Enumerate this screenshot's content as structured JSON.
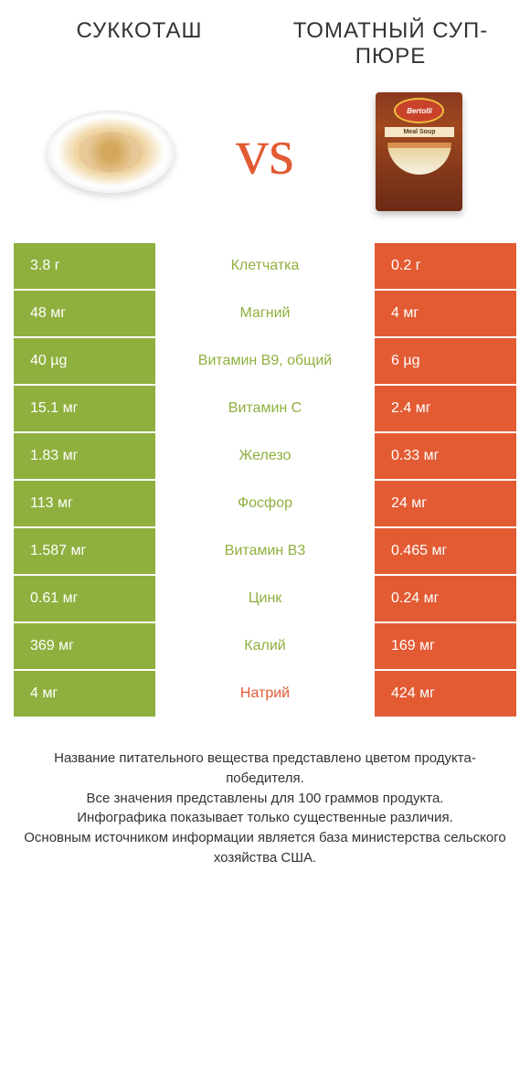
{
  "header": {
    "left_title": "СУККОТАШ",
    "right_title": "ТОМАТНЫЙ СУП-ПЮРЕ",
    "vs": "vs",
    "box_brand": "Bertolli",
    "box_text": "Meal Soup"
  },
  "colors": {
    "left": "#8fb03e",
    "right": "#e25b33",
    "vs": "#e25b33",
    "text": "#333333",
    "white": "#ffffff"
  },
  "rows": [
    {
      "left": "3.8 г",
      "label": "Клетчатка",
      "right": "0.2 г",
      "winner": "left"
    },
    {
      "left": "48 мг",
      "label": "Магний",
      "right": "4 мг",
      "winner": "left"
    },
    {
      "left": "40 µg",
      "label": "Витамин B9, общий",
      "right": "6 µg",
      "winner": "left"
    },
    {
      "left": "15.1 мг",
      "label": "Витамин C",
      "right": "2.4 мг",
      "winner": "left"
    },
    {
      "left": "1.83 мг",
      "label": "Железо",
      "right": "0.33 мг",
      "winner": "left"
    },
    {
      "left": "113 мг",
      "label": "Фосфор",
      "right": "24 мг",
      "winner": "left"
    },
    {
      "left": "1.587 мг",
      "label": "Витамин B3",
      "right": "0.465 мг",
      "winner": "left"
    },
    {
      "left": "0.61 мг",
      "label": "Цинк",
      "right": "0.24 мг",
      "winner": "left"
    },
    {
      "left": "369 мг",
      "label": "Калий",
      "right": "169 мг",
      "winner": "left"
    },
    {
      "left": "4 мг",
      "label": "Натрий",
      "right": "424 мг",
      "winner": "right"
    }
  ],
  "footer": {
    "line1": "Название питательного вещества представлено цветом продукта-победителя.",
    "line2": "Все значения представлены для 100 граммов продукта.",
    "line3": "Инфографика показывает только существенные различия.",
    "line4": "Основным источником информации является база министерства сельского хозяйства США."
  }
}
